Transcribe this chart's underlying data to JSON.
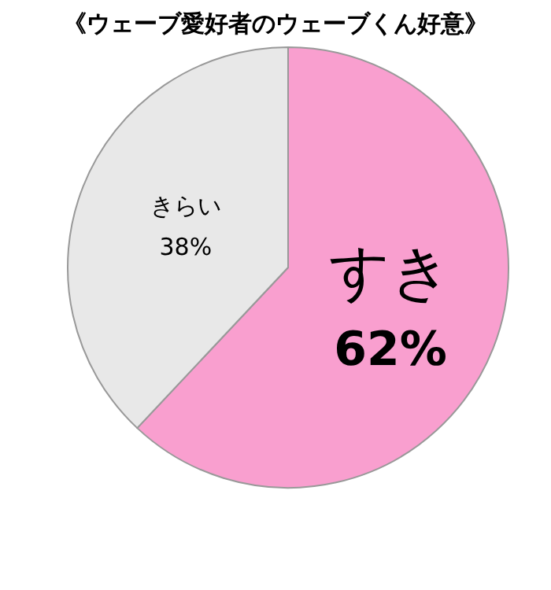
{
  "chart_data": {
    "type": "pie",
    "title": "《ウェーブ愛好者のウェーブくん好意》",
    "categories": [
      "すき",
      "きらい"
    ],
    "values": [
      62,
      38
    ],
    "value_labels": [
      "62%",
      "38%"
    ],
    "colors": [
      "#f99fcf",
      "#e8e8e8"
    ]
  }
}
